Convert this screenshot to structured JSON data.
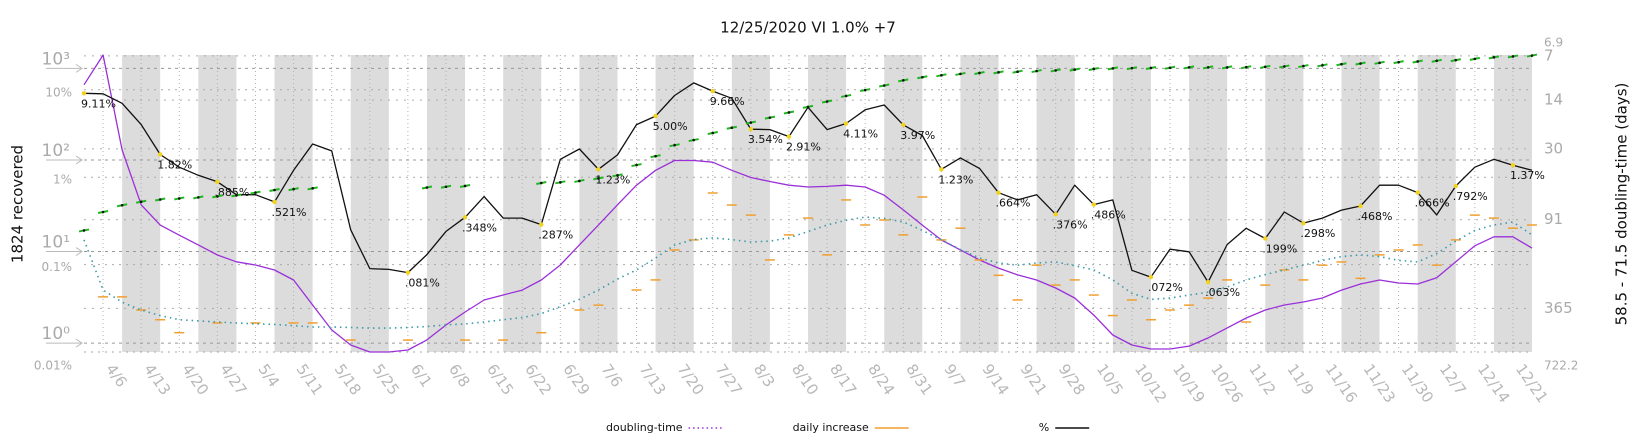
{
  "chart_data": {
    "type": "line",
    "title": "12/25/2020 VI 1.0% +7",
    "ylabel": "1824 recovered",
    "y2label": "58.5 - 71.5 doubling-time (days)",
    "categories": [
      null,
      "4/6",
      null,
      "4/13",
      null,
      "4/20",
      null,
      "4/27",
      null,
      "5/4",
      null,
      "5/11",
      null,
      "5/18",
      null,
      "5/25",
      null,
      "6/1",
      null,
      "6/8",
      null,
      "6/15",
      null,
      "6/22",
      null,
      "6/29",
      null,
      "7/6",
      null,
      "7/13",
      null,
      "7/20",
      null,
      "7/27",
      null,
      "8/3",
      null,
      "8/10",
      null,
      "8/17",
      null,
      "8/24",
      null,
      "8/31",
      null,
      "9/7",
      null,
      "9/14",
      null,
      "9/21",
      null,
      "9/28",
      null,
      "10/5",
      null,
      "10/12",
      null,
      "10/19",
      null,
      "10/26",
      null,
      "11/2",
      null,
      "11/9",
      null,
      "11/16",
      null,
      "11/23",
      null,
      "11/30",
      null,
      "12/7",
      null,
      "12/14",
      null,
      "12/21",
      null
    ],
    "ylog": true,
    "ylim": [
      0.8,
      1400
    ],
    "yticks": [
      {
        "value": 1,
        "label": "10⁰"
      },
      {
        "value": 10,
        "label": "10¹"
      },
      {
        "value": 100,
        "label": "10²"
      },
      {
        "value": 1000,
        "label": "10³"
      }
    ],
    "y2log": true,
    "y2_inverted": true,
    "y2lim": [
      6.9,
      722.2
    ],
    "y2ticks": [
      7,
      14,
      30,
      91,
      365
    ],
    "y3log": true,
    "y3lim": [
      0.01,
      25
    ],
    "y3ticks": [
      {
        "value": 10,
        "label": "10%"
      },
      {
        "value": 1,
        "label": "1%"
      },
      {
        "value": 0.1,
        "label": "0.1%"
      },
      {
        "value": 0.01,
        "label": "0.01%"
      }
    ],
    "grid": true,
    "legend": "bottom",
    "series": [
      {
        "name": "doubling-time",
        "color": "#9b30d9",
        "axis": "y2",
        "style": "solid",
        "values": [
          11,
          6.9,
          30.5,
          72,
          99,
          116,
          135,
          158,
          176,
          185,
          200,
          234,
          346,
          511,
          647,
          722,
          722,
          700,
          598,
          473,
          386,
          320,
          296,
          274,
          234,
          185,
          135,
          99,
          72,
          53,
          42,
          36,
          36,
          37,
          42,
          47,
          50,
          53,
          54.5,
          54,
          53,
          54.5,
          62,
          78,
          99,
          125,
          146,
          171,
          194,
          216,
          234,
          265,
          310,
          405,
          553,
          647,
          689,
          689,
          658,
          579,
          495,
          424,
          374,
          346,
          330,
          310,
          274,
          249,
          234,
          245,
          249,
          226,
          176,
          137,
          119,
          119,
          142
        ]
      },
      {
        "name": "daily increase",
        "color": "#f0a030",
        "axis": "y",
        "style": "marks",
        "values": [
          null,
          3.2,
          3.2,
          2.3,
          1.8,
          1.3,
          null,
          1.66,
          null,
          1.66,
          null,
          1.66,
          1.66,
          null,
          1.08,
          null,
          null,
          1.08,
          null,
          null,
          1.08,
          null,
          1.08,
          null,
          1.3,
          null,
          2.3,
          2.6,
          null,
          3.8,
          4.9,
          10.4,
          13.4,
          43.6,
          32.2,
          25,
          8.1,
          15.2,
          23.2,
          9.2,
          36.6,
          19.5,
          22.1,
          15.2,
          39.4,
          13.4,
          18,
          8.1,
          5.5,
          2.96,
          7.1,
          4.3,
          4.9,
          3.35,
          2,
          2.96,
          1.8,
          2.3,
          2.6,
          3.1,
          4.9,
          1.7,
          4.3,
          6.3,
          4.9,
          7.1,
          7.7,
          5.1,
          9.2,
          10.4,
          11.8,
          7.1,
          13.4,
          25,
          23.2,
          18,
          19.5
        ]
      },
      {
        "name": "%",
        "color": "#111111",
        "axis": "y3",
        "style": "solid",
        "values": [
          9.11,
          9,
          7,
          4,
          1.82,
          1.3,
          1.05,
          0.885,
          0.63,
          0.63,
          0.521,
          1.2,
          2.4,
          2,
          0.25,
          0.09,
          0.088,
          0.081,
          0.13,
          0.24,
          0.348,
          0.6,
          0.34,
          0.34,
          0.287,
          1.6,
          2.1,
          1.23,
          1.8,
          4,
          5,
          8.6,
          12,
          9.66,
          8,
          3.54,
          3.5,
          2.91,
          6.3,
          3.5,
          4.11,
          5.9,
          6.7,
          3.97,
          3,
          1.23,
          1.66,
          1.26,
          0.664,
          0.55,
          0.63,
          0.376,
          0.81,
          0.486,
          0.55,
          0.086,
          0.072,
          0.15,
          0.14,
          0.063,
          0.17,
          0.26,
          0.199,
          0.4,
          0.298,
          0.34,
          0.42,
          0.468,
          0.81,
          0.81,
          0.666,
          0.37,
          0.792,
          1.3,
          1.6,
          1.37,
          1.2
        ],
        "value_labels": [
          "9.11%",
          null,
          null,
          null,
          "1.82%",
          null,
          null,
          ".885%",
          null,
          null,
          ".521%",
          null,
          null,
          null,
          null,
          null,
          null,
          ".081%",
          null,
          null,
          ".348%",
          null,
          null,
          null,
          ".287%",
          null,
          null,
          "1.23%",
          null,
          null,
          "5.00%",
          null,
          null,
          "9.66%",
          null,
          "3.54%",
          null,
          "2.91%",
          null,
          null,
          "4.11%",
          null,
          null,
          "3.97%",
          null,
          "1.23%",
          null,
          null,
          ".664%",
          null,
          null,
          ".376%",
          null,
          ".486%",
          null,
          null,
          ".072%",
          null,
          null,
          ".063%",
          null,
          null,
          ".199%",
          null,
          ".298%",
          null,
          null,
          ".468%",
          null,
          null,
          ".666%",
          null,
          ".792%",
          null,
          null,
          "1.37%",
          null
        ]
      },
      {
        "color": "#3a9aa8",
        "axis": "y",
        "style": "dotted",
        "values": [
          13.4,
          3.8,
          2.8,
          2.3,
          2,
          1.8,
          1.75,
          1.7,
          1.66,
          1.62,
          1.6,
          1.55,
          1.5,
          1.5,
          1.48,
          1.46,
          1.46,
          1.48,
          1.52,
          1.58,
          1.62,
          1.7,
          1.8,
          1.9,
          2.1,
          2.5,
          3,
          3.8,
          5,
          6.3,
          8.5,
          11.8,
          13.5,
          14.1,
          13.5,
          12.7,
          13,
          14.1,
          16.5,
          19.5,
          22,
          23.8,
          23,
          21,
          17,
          13.4,
          10.5,
          8.5,
          7.5,
          7.1,
          7.5,
          7.7,
          7,
          6.3,
          4.9,
          3.5,
          3,
          3.1,
          3.35,
          3.6,
          4.1,
          4.9,
          5.6,
          6.3,
          7.1,
          8,
          8.8,
          9.2,
          8.8,
          8,
          7.7,
          9.5,
          13,
          17,
          19.5,
          21,
          15.2
        ]
      },
      {
        "color": "#1fb81f",
        "axis": "y",
        "style": "dots",
        "values": [
          17,
          27,
          32,
          35,
          37,
          38,
          39,
          40,
          41,
          44,
          47,
          48,
          49,
          null,
          null,
          null,
          null,
          null,
          50,
          51,
          52,
          null,
          null,
          null,
          56,
          57,
          59,
          63,
          68,
          88,
          110,
          145,
          165,
          197,
          225,
          256,
          290,
          330,
          380,
          435,
          500,
          580,
          650,
          740,
          800,
          840,
          870,
          890,
          905,
          920,
          935,
          950,
          970,
          985,
          1000,
          1005,
          1010,
          1015,
          1025,
          1025,
          1025,
          1030,
          1040,
          1050,
          1060,
          1080,
          1110,
          1130,
          1150,
          1170,
          1190,
          1210,
          1230,
          1270,
          1320,
          1350,
          1380
        ]
      }
    ]
  }
}
